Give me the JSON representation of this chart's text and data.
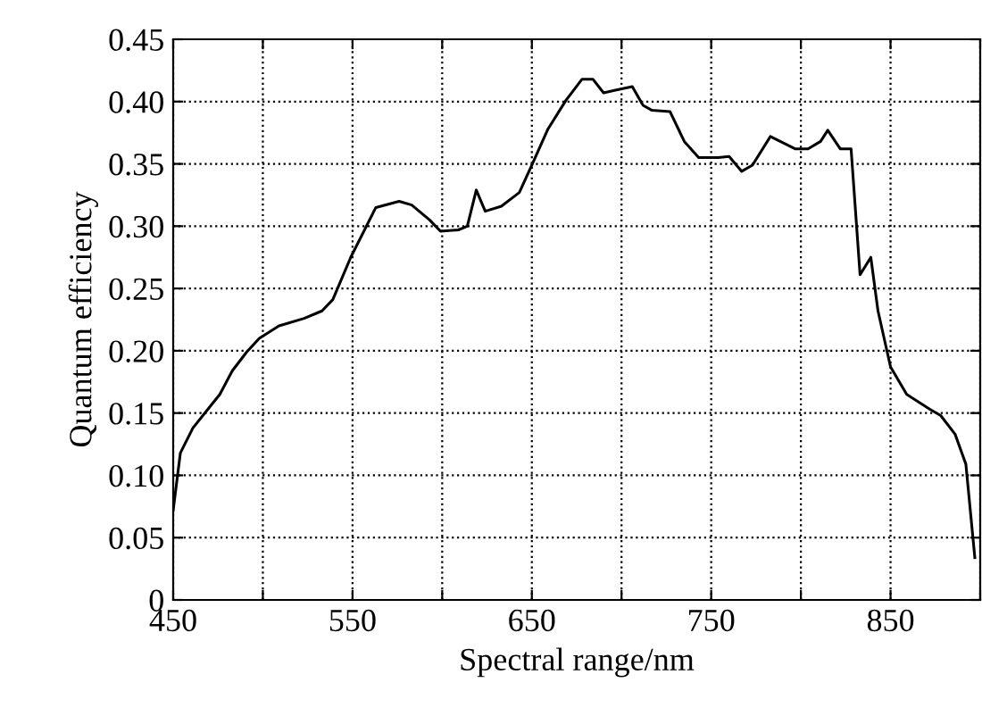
{
  "chart_data": {
    "type": "line",
    "xlabel": "Spectral range/nm",
    "ylabel": "Quantum efficiency",
    "x": [
      450,
      454,
      461,
      471,
      476,
      483,
      491,
      498,
      509,
      523,
      533,
      539,
      549,
      563,
      576,
      583,
      593,
      599,
      609,
      614,
      619,
      624,
      633,
      643,
      650,
      659,
      669,
      678,
      684,
      690,
      696,
      706,
      712,
      717,
      727,
      735,
      743,
      754,
      760,
      767,
      773,
      783,
      797,
      804,
      811,
      815,
      822,
      828,
      833,
      839,
      843,
      850,
      859,
      872,
      878,
      886,
      892,
      897
    ],
    "series": [
      {
        "color": "#000000",
        "values": [
          0.072,
          0.118,
          0.138,
          0.156,
          0.165,
          0.184,
          0.199,
          0.21,
          0.22,
          0.226,
          0.232,
          0.241,
          0.275,
          0.315,
          0.32,
          0.317,
          0.305,
          0.296,
          0.297,
          0.3,
          0.329,
          0.312,
          0.316,
          0.327,
          0.349,
          0.378,
          0.401,
          0.418,
          0.418,
          0.407,
          0.409,
          0.412,
          0.397,
          0.393,
          0.392,
          0.368,
          0.355,
          0.355,
          0.356,
          0.344,
          0.349,
          0.372,
          0.362,
          0.362,
          0.368,
          0.377,
          0.362,
          0.362,
          0.261,
          0.275,
          0.232,
          0.187,
          0.165,
          0.153,
          0.148,
          0.133,
          0.109,
          0.034
        ]
      }
    ],
    "xlim": [
      450,
      900
    ],
    "xticks": [
      450,
      {
        "value": 500,
        "label": null
      },
      550,
      {
        "value": 600,
        "label": null
      },
      650,
      {
        "value": 700,
        "label": null
      },
      750,
      {
        "value": 800,
        "label": null
      },
      850,
      {
        "value": 900,
        "label": null
      }
    ],
    "ylim": [
      0,
      0.45
    ],
    "yticks": [
      {
        "value": 0,
        "label": "0"
      },
      {
        "value": 0.05,
        "label": "0.05"
      },
      {
        "value": 0.1,
        "label": "0.10"
      },
      {
        "value": 0.15,
        "label": "0.15"
      },
      {
        "value": 0.2,
        "label": "0.20"
      },
      {
        "value": 0.25,
        "label": "0.25"
      },
      {
        "value": 0.3,
        "label": "0.30"
      },
      {
        "value": 0.35,
        "label": "0.35"
      },
      {
        "value": 0.4,
        "label": "0.40"
      },
      {
        "value": 0.45,
        "label": "0.45"
      }
    ],
    "grid": true,
    "line_style": "solid",
    "marker": "none"
  }
}
